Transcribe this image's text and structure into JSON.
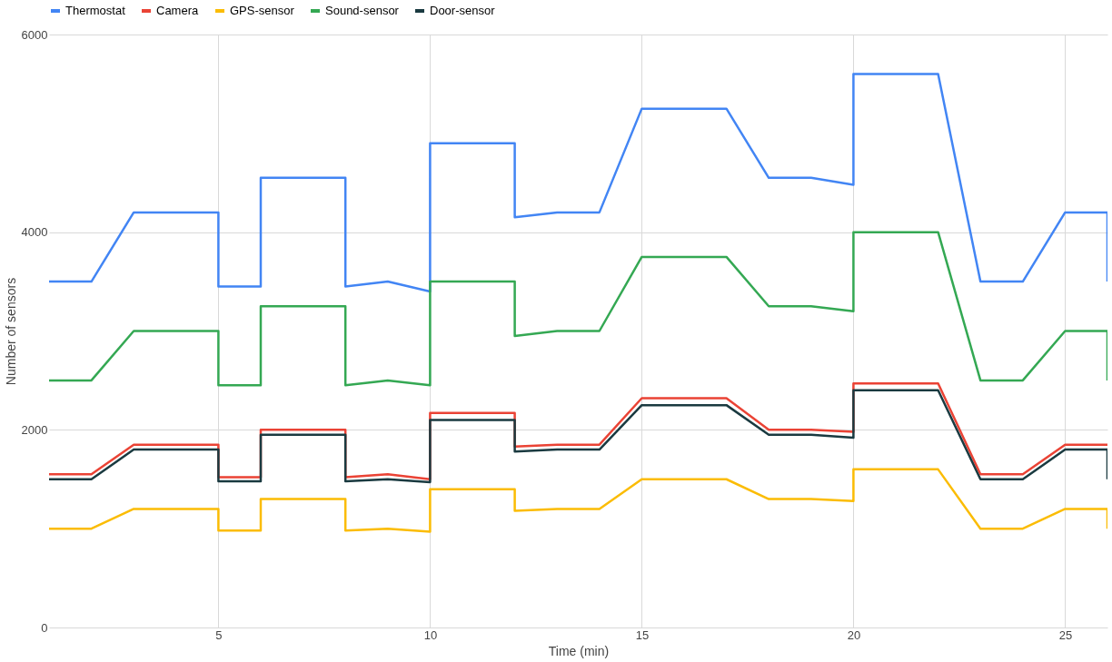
{
  "chart_data": {
    "type": "line",
    "xlabel": "Time (min)",
    "ylabel": "Number of sensors",
    "x": [
      1,
      2,
      3,
      4,
      5,
      5,
      6,
      6,
      7,
      8,
      8,
      9,
      10,
      10,
      11,
      12,
      12,
      13,
      14,
      15,
      16,
      17,
      18,
      19,
      20,
      20,
      21,
      22,
      23,
      24,
      25,
      26,
      26
    ],
    "series": [
      {
        "name": "Thermostat",
        "color": "#4285f4",
        "values": [
          3500,
          3500,
          4200,
          4200,
          4200,
          3450,
          3450,
          4550,
          4550,
          4550,
          3450,
          3500,
          3400,
          4900,
          4900,
          4900,
          4150,
          4200,
          4200,
          5250,
          5250,
          5250,
          4550,
          4550,
          4480,
          5600,
          5600,
          5600,
          3500,
          3500,
          4200,
          4200,
          3500
        ]
      },
      {
        "name": "Camera",
        "color": "#ea4335",
        "values": [
          1550,
          1550,
          1850,
          1850,
          1850,
          1520,
          1520,
          2000,
          2000,
          2000,
          1520,
          1550,
          1500,
          2170,
          2170,
          2170,
          1830,
          1850,
          1850,
          2320,
          2320,
          2320,
          2000,
          2000,
          1980,
          2470,
          2470,
          2470,
          1550,
          1550,
          1850,
          1850,
          null
        ]
      },
      {
        "name": "GPS-sensor",
        "color": "#fbbc04",
        "values": [
          1000,
          1000,
          1200,
          1200,
          1200,
          980,
          980,
          1300,
          1300,
          1300,
          980,
          1000,
          970,
          1400,
          1400,
          1400,
          1180,
          1200,
          1200,
          1500,
          1500,
          1500,
          1300,
          1300,
          1280,
          1600,
          1600,
          1600,
          1000,
          1000,
          1200,
          1200,
          1000
        ]
      },
      {
        "name": "Sound-sensor",
        "color": "#34a853",
        "values": [
          2500,
          2500,
          3000,
          3000,
          3000,
          2450,
          2450,
          3250,
          3250,
          3250,
          2450,
          2500,
          2450,
          3500,
          3500,
          3500,
          2950,
          3000,
          3000,
          3750,
          3750,
          3750,
          3250,
          3250,
          3200,
          4000,
          4000,
          4000,
          2500,
          2500,
          3000,
          3000,
          2500
        ]
      },
      {
        "name": "Door-sensor",
        "color": "#1a3a40",
        "values": [
          1500,
          1500,
          1800,
          1800,
          1800,
          1480,
          1480,
          1950,
          1950,
          1950,
          1480,
          1500,
          1470,
          2100,
          2100,
          2100,
          1780,
          1800,
          1800,
          2250,
          2250,
          2250,
          1950,
          1950,
          1920,
          2400,
          2400,
          2400,
          1500,
          1500,
          1800,
          1800,
          1500
        ]
      }
    ],
    "xlim": [
      1,
      26
    ],
    "xticks": [
      5,
      10,
      15,
      20,
      25
    ],
    "ylim": [
      0,
      6000
    ],
    "yticks": [
      0,
      2000,
      4000,
      6000
    ],
    "grid": true,
    "legend": "top",
    "marker": "none",
    "line_style": "solid"
  }
}
